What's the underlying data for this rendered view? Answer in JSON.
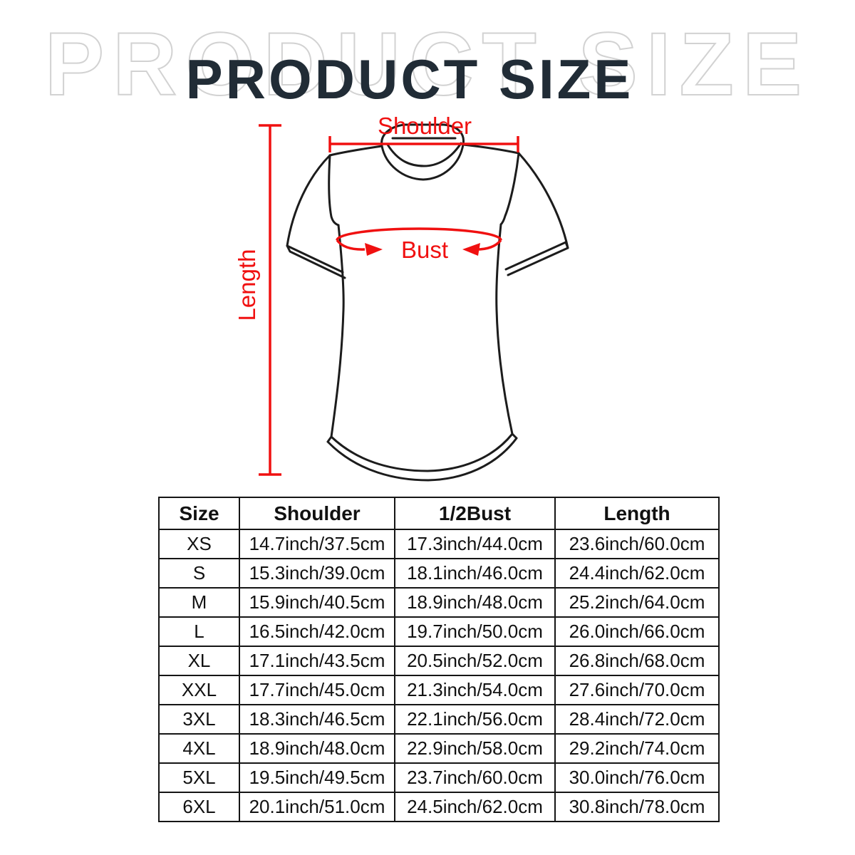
{
  "colors": {
    "accent_red": "#f01010",
    "shirt_line": "#1c1c1c",
    "title_ink": "#212c36",
    "title_outline": "#d2d2d2",
    "table_border": "#151515",
    "background": "#ffffff"
  },
  "title": {
    "text": "PRODUCT SIZE"
  },
  "diagram": {
    "shoulder_label": "Shoulder",
    "bust_label": "Bust",
    "length_label": "Length"
  },
  "table": {
    "headers": [
      "Size",
      "Shoulder",
      "1/2Bust",
      "Length"
    ],
    "rows": [
      [
        "XS",
        "14.7inch/37.5cm",
        "17.3inch/44.0cm",
        "23.6inch/60.0cm"
      ],
      [
        "S",
        "15.3inch/39.0cm",
        "18.1inch/46.0cm",
        "24.4inch/62.0cm"
      ],
      [
        "M",
        "15.9inch/40.5cm",
        "18.9inch/48.0cm",
        "25.2inch/64.0cm"
      ],
      [
        "L",
        "16.5inch/42.0cm",
        "19.7inch/50.0cm",
        "26.0inch/66.0cm"
      ],
      [
        "XL",
        "17.1inch/43.5cm",
        "20.5inch/52.0cm",
        "26.8inch/68.0cm"
      ],
      [
        "XXL",
        "17.7inch/45.0cm",
        "21.3inch/54.0cm",
        "27.6inch/70.0cm"
      ],
      [
        "3XL",
        "18.3inch/46.5cm",
        "22.1inch/56.0cm",
        "28.4inch/72.0cm"
      ],
      [
        "4XL",
        "18.9inch/48.0cm",
        "22.9inch/58.0cm",
        "29.2inch/74.0cm"
      ],
      [
        "5XL",
        "19.5inch/49.5cm",
        "23.7inch/60.0cm",
        "30.0inch/76.0cm"
      ],
      [
        "6XL",
        "20.1inch/51.0cm",
        "24.5inch/62.0cm",
        "30.8inch/78.0cm"
      ]
    ]
  }
}
